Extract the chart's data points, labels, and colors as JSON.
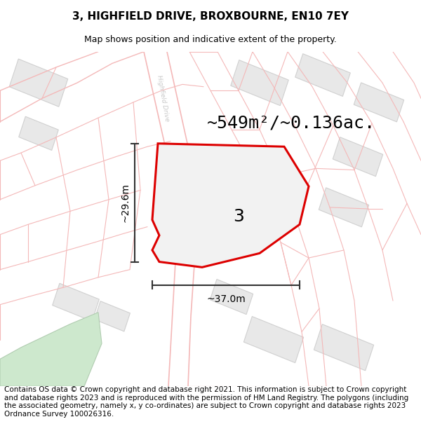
{
  "title_line1": "3, HIGHFIELD DRIVE, BROXBOURNE, EN10 7EY",
  "title_line2": "Map shows position and indicative extent of the property.",
  "area_label": "~549m²/~0.136ac.",
  "plot_number": "3",
  "width_label": "~37.0m",
  "height_label": "~29.6m",
  "footer_text": "Contains OS data © Crown copyright and database right 2021. This information is subject to Crown copyright and database rights 2023 and is reproduced with the permission of HM Land Registry. The polygons (including the associated geometry, namely x, y co-ordinates) are subject to Crown copyright and database rights 2023 Ordnance Survey 100026316.",
  "map_bg": "#ffffff",
  "boundary_color": "#f4b8b8",
  "building_fill": "#e8e8e8",
  "building_stroke": "#d0d0d0",
  "green_fill": "#cde8cd",
  "green_stroke": "#b0ccb0",
  "plot_stroke": "#dd0000",
  "plot_fill": "#f2f2f2",
  "dim_color": "#333333",
  "road_label_color": "#c8c8c8",
  "title_fontsize": 11,
  "subtitle_fontsize": 9,
  "area_fontsize": 18,
  "number_fontsize": 18,
  "dim_fontsize": 10,
  "footer_fontsize": 7.5
}
